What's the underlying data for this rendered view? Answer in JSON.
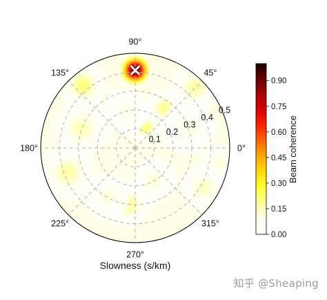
{
  "chart_data": {
    "type": "heatmap",
    "projection": "polar",
    "xlabel": "Slowness (s/km)",
    "angle_ticks": [
      {
        "deg": 0,
        "label": "0°"
      },
      {
        "deg": 45,
        "label": "45°"
      },
      {
        "deg": 90,
        "label": "90°"
      },
      {
        "deg": 135,
        "label": "135°"
      },
      {
        "deg": 180,
        "label": "180°"
      },
      {
        "deg": 225,
        "label": "225°"
      },
      {
        "deg": 270,
        "label": "270°"
      },
      {
        "deg": 315,
        "label": "315°"
      }
    ],
    "radial_ticks": [
      {
        "value": 0.1,
        "label": "0.1"
      },
      {
        "value": 0.2,
        "label": "0.2"
      },
      {
        "value": 0.3,
        "label": "0.3"
      },
      {
        "value": 0.4,
        "label": "0.4"
      },
      {
        "value": 0.5,
        "label": "0.5"
      }
    ],
    "rlim": [
      0,
      0.5
    ],
    "grid": true,
    "colorbar": {
      "label": "Beam coherence",
      "range": [
        0,
        1.0
      ],
      "ticks": [
        {
          "value": 0.0,
          "label": "0.00"
        },
        {
          "value": 0.15,
          "label": "0.15"
        },
        {
          "value": 0.3,
          "label": "0.30"
        },
        {
          "value": 0.45,
          "label": "0.45"
        },
        {
          "value": 0.6,
          "label": "0.60"
        },
        {
          "value": 0.75,
          "label": "0.75"
        },
        {
          "value": 0.9,
          "label": "0.90"
        }
      ],
      "colormap": [
        "#ffffff",
        "#fffff0",
        "#ffff99",
        "#ffff33",
        "#ffdd00",
        "#ffaa00",
        "#ff6600",
        "#ff2200",
        "#dd0000",
        "#aa0000",
        "#660000",
        "#1a0000"
      ]
    },
    "blobs": [
      {
        "az": 90,
        "slowness": 0.41,
        "peak": 1.0,
        "spread": 0.045
      },
      {
        "az": 130,
        "slowness": 0.43,
        "peak": 0.22,
        "spread": 0.06
      },
      {
        "az": 45,
        "slowness": 0.45,
        "peak": 0.18,
        "spread": 0.06
      },
      {
        "az": 53,
        "slowness": 0.26,
        "peak": 0.2,
        "spread": 0.05
      },
      {
        "az": 62,
        "slowness": 0.12,
        "peak": 0.22,
        "spread": 0.04
      },
      {
        "az": 160,
        "slowness": 0.3,
        "peak": 0.16,
        "spread": 0.07
      },
      {
        "az": 200,
        "slowness": 0.38,
        "peak": 0.18,
        "spread": 0.07
      },
      {
        "az": 262,
        "slowness": 0.3,
        "peak": 0.2,
        "spread": 0.06
      },
      {
        "az": 240,
        "slowness": 0.3,
        "peak": 0.12,
        "spread": 0.06
      },
      {
        "az": 330,
        "slowness": 0.42,
        "peak": 0.15,
        "spread": 0.06
      },
      {
        "az": 350,
        "slowness": 0.46,
        "peak": 0.12,
        "spread": 0.05
      },
      {
        "az": 300,
        "slowness": 0.2,
        "peak": 0.12,
        "spread": 0.06
      },
      {
        "az": 105,
        "slowness": 0.2,
        "peak": 0.1,
        "spread": 0.06
      },
      {
        "az": 20,
        "slowness": 0.3,
        "peak": 0.1,
        "spread": 0.07
      }
    ],
    "peak_marker": {
      "az": 90,
      "slowness": 0.41,
      "symbol": "×"
    }
  },
  "watermark": "知乎 @Sheaping"
}
